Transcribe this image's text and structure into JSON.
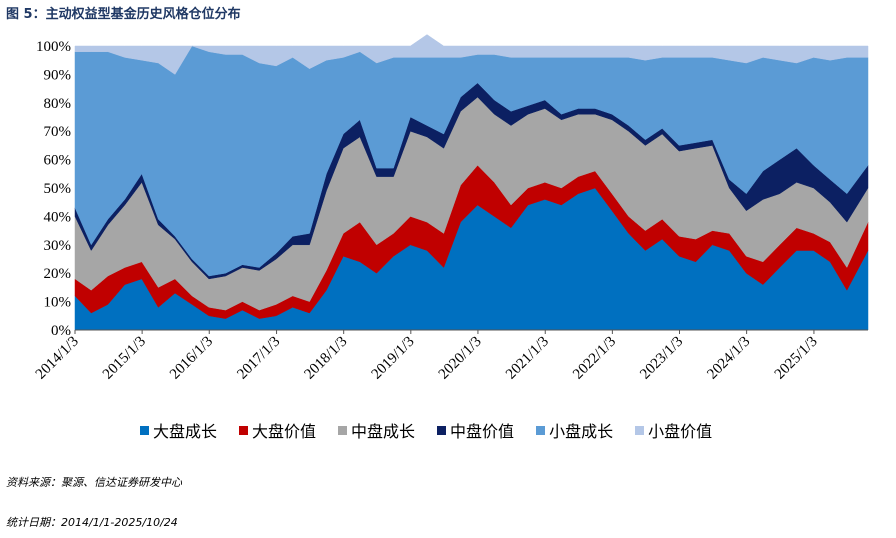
{
  "figure_title": "图 5：主动权益型基金历史风格仓位分布",
  "source_note": "资料来源：聚源、信达证券研发中心",
  "date_note": "统计日期：2014/1/1-2025/10/24",
  "chart_data": {
    "type": "area",
    "stacked": true,
    "ylim": [
      0,
      100
    ],
    "y_tick_labels": [
      "0%",
      "10%",
      "20%",
      "30%",
      "40%",
      "50%",
      "60%",
      "70%",
      "80%",
      "90%",
      "100%"
    ],
    "x_tick_labels": [
      "2014/1/3",
      "2015/1/3",
      "2016/1/3",
      "2017/1/3",
      "2018/1/3",
      "2019/1/3",
      "2020/1/3",
      "2021/1/3",
      "2022/1/3",
      "2023/1/3",
      "2024/1/3",
      "2025/1/3"
    ],
    "x_range": [
      "2014/1/3",
      "2025/10/24"
    ],
    "legend_position": "bottom",
    "grid": false,
    "x": [
      "2014/1",
      "2014/4",
      "2014/7",
      "2014/10",
      "2015/1",
      "2015/4",
      "2015/7",
      "2015/10",
      "2016/1",
      "2016/4",
      "2016/7",
      "2016/10",
      "2017/1",
      "2017/4",
      "2017/7",
      "2017/10",
      "2018/1",
      "2018/4",
      "2018/7",
      "2018/10",
      "2019/1",
      "2019/4",
      "2019/7",
      "2019/10",
      "2020/1",
      "2020/4",
      "2020/7",
      "2020/10",
      "2021/1",
      "2021/4",
      "2021/7",
      "2021/10",
      "2022/1",
      "2022/4",
      "2022/7",
      "2022/10",
      "2023/1",
      "2023/4",
      "2023/7",
      "2023/10",
      "2024/1",
      "2024/4",
      "2024/7",
      "2024/10",
      "2025/1",
      "2025/4",
      "2025/7",
      "2025/10"
    ],
    "series": [
      {
        "name": "大盘成长",
        "color": "#0070c0",
        "values": [
          12,
          6,
          9,
          16,
          18,
          8,
          13,
          9,
          5,
          4,
          7,
          4,
          5,
          8,
          6,
          14,
          26,
          24,
          20,
          26,
          30,
          28,
          22,
          38,
          44,
          40,
          36,
          44,
          46,
          44,
          48,
          50,
          42,
          34,
          28,
          32,
          26,
          24,
          30,
          28,
          20,
          16,
          22,
          28,
          28,
          24,
          14,
          28
        ]
      },
      {
        "name": "大盘价值",
        "color": "#c00000",
        "values": [
          6,
          8,
          10,
          6,
          6,
          7,
          5,
          3,
          3,
          3,
          3,
          3,
          4,
          4,
          4,
          7,
          8,
          14,
          10,
          8,
          10,
          10,
          12,
          13,
          14,
          12,
          8,
          6,
          6,
          6,
          6,
          6,
          6,
          6,
          7,
          7,
          7,
          8,
          5,
          6,
          6,
          8,
          8,
          8,
          6,
          7,
          8,
          10
        ]
      },
      {
        "name": "中盘成长",
        "color": "#a6a6a6",
        "values": [
          22,
          14,
          18,
          22,
          28,
          22,
          14,
          12,
          10,
          12,
          12,
          14,
          16,
          18,
          20,
          28,
          30,
          30,
          24,
          20,
          30,
          30,
          30,
          26,
          24,
          24,
          28,
          26,
          26,
          24,
          22,
          20,
          26,
          30,
          30,
          30,
          30,
          32,
          30,
          16,
          16,
          22,
          18,
          16,
          16,
          14,
          16,
          12
        ]
      },
      {
        "name": "中盘价值",
        "color": "#0c2062",
        "values": [
          3,
          2,
          2,
          2,
          3,
          2,
          1,
          1,
          1,
          1,
          1,
          1,
          2,
          3,
          4,
          6,
          5,
          6,
          3,
          3,
          5,
          4,
          5,
          5,
          5,
          5,
          5,
          3,
          3,
          2,
          2,
          2,
          2,
          2,
          2,
          2,
          2,
          2,
          2,
          3,
          6,
          10,
          12,
          12,
          8,
          8,
          10,
          8
        ]
      },
      {
        "name": "小盘成长",
        "color": "#5b9bd5",
        "values": [
          55,
          68,
          59,
          50,
          40,
          55,
          57,
          75,
          79,
          77,
          74,
          72,
          66,
          63,
          58,
          40,
          27,
          24,
          37,
          39,
          21,
          24,
          27,
          14,
          10,
          16,
          19,
          17,
          15,
          20,
          18,
          18,
          20,
          24,
          28,
          25,
          31,
          30,
          29,
          42,
          46,
          40,
          35,
          30,
          38,
          42,
          48,
          38
        ]
      },
      {
        "name": "小盘价值",
        "color": "#b4c7e7",
        "values": [
          2,
          2,
          2,
          4,
          5,
          6,
          10,
          0,
          2,
          3,
          3,
          6,
          7,
          4,
          8,
          5,
          4,
          2,
          6,
          4,
          4,
          8,
          4,
          4,
          3,
          3,
          4,
          4,
          4,
          4,
          4,
          4,
          4,
          4,
          5,
          4,
          4,
          4,
          4,
          5,
          6,
          4,
          5,
          6,
          4,
          5,
          4,
          4
        ]
      }
    ]
  }
}
